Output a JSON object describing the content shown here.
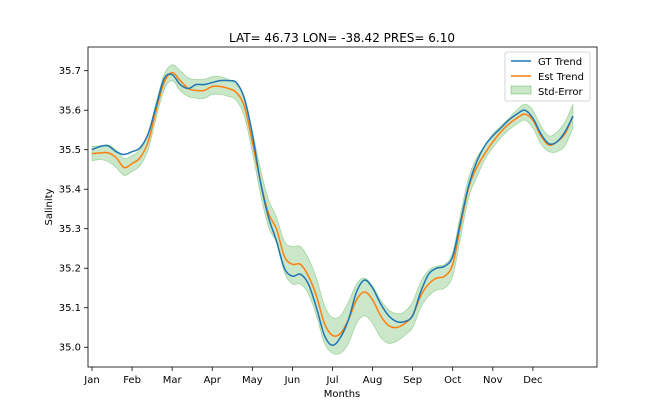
{
  "chart_data": {
    "type": "line",
    "title": "LAT= 46.73 LON= -38.42 PRES= 6.10",
    "xlabel": "Months",
    "ylabel": "Salinity",
    "xlim": [
      -0.1,
      12.6
    ],
    "ylim": [
      34.95,
      35.76
    ],
    "x_ticks": [
      0,
      1,
      2,
      3,
      4,
      5,
      6,
      7,
      8,
      9,
      10,
      11
    ],
    "x_tick_labels": [
      "Jan",
      "Feb",
      "Mar",
      "Apr",
      "May",
      "Jun",
      "Jul",
      "Aug",
      "Sep",
      "Oct",
      "Nov",
      "Dec"
    ],
    "y_ticks": [
      35.0,
      35.1,
      35.2,
      35.3,
      35.4,
      35.5,
      35.6,
      35.7
    ],
    "y_tick_labels": [
      "35.0",
      "35.1",
      "35.2",
      "35.3",
      "35.4",
      "35.5",
      "35.6",
      "35.7"
    ],
    "legend": {
      "position": "top-right",
      "entries": [
        "GT Trend",
        "Est Trend",
        "Std-Error"
      ]
    },
    "colors": {
      "gt": "#1f77b4",
      "est": "#ff7f0e",
      "band": "#2ca02c"
    },
    "x": [
      0,
      0.2,
      0.4,
      0.6,
      0.8,
      1.0,
      1.2,
      1.4,
      1.6,
      1.8,
      2.0,
      2.2,
      2.4,
      2.6,
      2.8,
      3.0,
      3.2,
      3.4,
      3.6,
      3.8,
      4.0,
      4.2,
      4.4,
      4.6,
      4.8,
      5.0,
      5.2,
      5.4,
      5.6,
      5.8,
      6.0,
      6.2,
      6.4,
      6.6,
      6.8,
      7.0,
      7.2,
      7.4,
      7.6,
      7.8,
      8.0,
      8.2,
      8.4,
      8.6,
      8.8,
      9.0,
      9.2,
      9.4,
      9.6,
      9.8,
      10.0,
      10.2,
      10.4,
      10.6,
      10.8,
      11.0,
      11.2,
      11.4,
      11.6,
      11.8,
      12.0
    ],
    "series": [
      {
        "name": "GT Trend",
        "values": [
          35.5,
          35.508,
          35.51,
          35.495,
          35.488,
          35.495,
          35.505,
          35.54,
          35.61,
          35.68,
          35.69,
          35.665,
          35.655,
          35.665,
          35.665,
          35.67,
          35.675,
          35.675,
          35.67,
          35.63,
          35.54,
          35.42,
          35.33,
          35.27,
          35.2,
          35.18,
          35.185,
          35.16,
          35.1,
          35.03,
          35.005,
          35.025,
          35.07,
          35.14,
          35.17,
          35.15,
          35.11,
          35.08,
          35.065,
          35.065,
          35.08,
          35.14,
          35.185,
          35.2,
          35.205,
          35.23,
          35.32,
          35.41,
          35.47,
          35.51,
          35.535,
          35.555,
          35.575,
          35.59,
          35.6,
          35.58,
          35.54,
          35.515,
          35.52,
          35.545,
          35.585
        ]
      },
      {
        "name": "Est Trend",
        "values": [
          35.49,
          35.492,
          35.492,
          35.48,
          35.455,
          35.465,
          35.48,
          35.52,
          35.6,
          35.67,
          35.695,
          35.675,
          35.655,
          35.65,
          35.65,
          35.66,
          35.66,
          35.655,
          35.645,
          35.61,
          35.52,
          35.42,
          35.34,
          35.3,
          35.23,
          35.21,
          35.21,
          35.18,
          35.13,
          35.06,
          35.03,
          35.035,
          35.07,
          35.12,
          35.14,
          35.12,
          35.08,
          35.055,
          35.05,
          35.06,
          35.08,
          35.13,
          35.16,
          35.175,
          35.18,
          35.21,
          35.31,
          35.405,
          35.455,
          35.49,
          35.52,
          35.545,
          35.565,
          35.58,
          35.59,
          35.575,
          35.535,
          35.512,
          35.52,
          35.54,
          35.585
        ]
      },
      {
        "name": "Std-Error",
        "lower": [
          35.472,
          35.475,
          35.47,
          35.455,
          35.435,
          35.445,
          35.46,
          35.5,
          35.58,
          35.652,
          35.675,
          35.65,
          35.635,
          35.63,
          35.63,
          35.64,
          35.64,
          35.635,
          35.625,
          35.585,
          35.495,
          35.39,
          35.305,
          35.265,
          35.19,
          35.16,
          35.16,
          35.135,
          35.08,
          35.01,
          34.985,
          34.985,
          35.01,
          35.06,
          35.08,
          35.06,
          35.025,
          35.01,
          35.015,
          35.03,
          35.05,
          35.1,
          35.13,
          35.145,
          35.15,
          35.18,
          35.28,
          35.38,
          35.43,
          35.475,
          35.505,
          35.53,
          35.55,
          35.565,
          35.575,
          35.555,
          35.515,
          35.495,
          35.495,
          35.51,
          35.555
        ],
        "upper": [
          35.508,
          35.51,
          35.512,
          35.5,
          35.478,
          35.485,
          35.5,
          35.54,
          35.62,
          35.69,
          35.715,
          35.7,
          35.682,
          35.678,
          35.678,
          35.685,
          35.685,
          35.678,
          35.665,
          35.635,
          35.548,
          35.452,
          35.375,
          35.33,
          35.268,
          35.255,
          35.255,
          35.225,
          35.175,
          35.105,
          35.075,
          35.08,
          35.115,
          35.16,
          35.175,
          35.155,
          35.12,
          35.095,
          35.085,
          35.09,
          35.115,
          35.165,
          35.195,
          35.205,
          35.21,
          35.24,
          35.34,
          35.43,
          35.48,
          35.51,
          35.54,
          35.56,
          35.58,
          35.6,
          35.615,
          35.6,
          35.56,
          35.535,
          35.545,
          35.57,
          35.615
        ]
      }
    ]
  }
}
